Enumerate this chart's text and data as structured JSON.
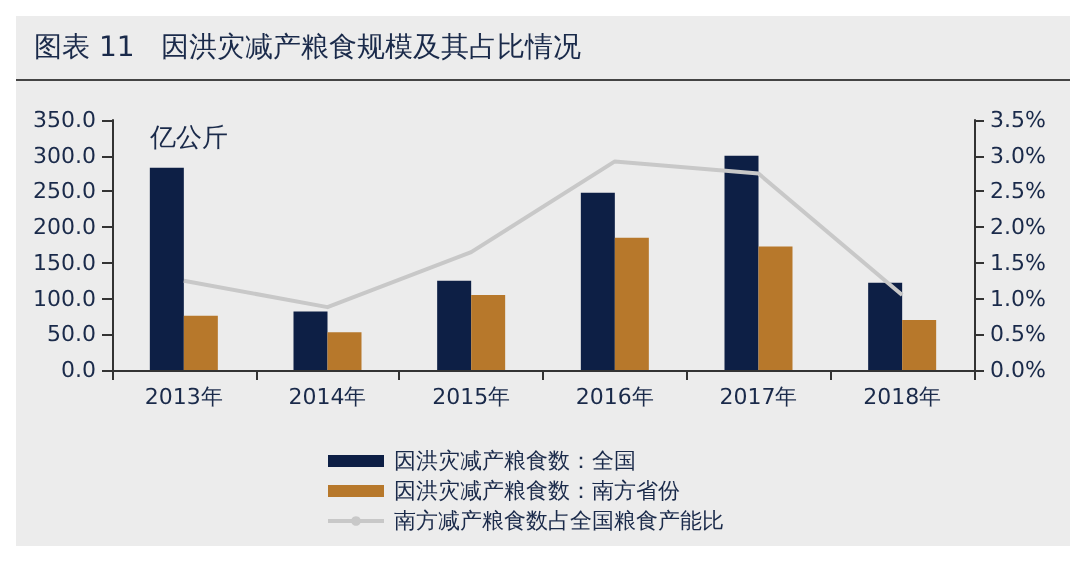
{
  "chart_data": {
    "type": "bar",
    "title": "图表 11   因洪灾减产粮食规模及其占比情况",
    "ylabel": "亿公斤",
    "categories": [
      "2013年",
      "2014年",
      "2015年",
      "2016年",
      "2017年",
      "2018年"
    ],
    "series": [
      {
        "name": "因洪灾减产粮食数：全国",
        "color": "#0d1f45",
        "values": [
          283,
          82,
          125,
          248,
          300,
          122
        ]
      },
      {
        "name": "因洪灾减产粮食数：南方省份",
        "color": "#b7782b",
        "values": [
          76,
          53,
          105,
          185,
          173,
          70
        ]
      },
      {
        "name": "南方减产粮食数占全国粮食产能比",
        "type": "line",
        "axis": "y2",
        "color": "#c8c8c8",
        "values": [
          1.25,
          0.88,
          1.65,
          2.92,
          2.75,
          1.05
        ]
      }
    ],
    "ylim": [
      0,
      350
    ],
    "yticks": [
      {
        "value": 0,
        "label": "0.0"
      },
      {
        "value": 50,
        "label": "50.0"
      },
      {
        "value": 100,
        "label": "100.0"
      },
      {
        "value": 150,
        "label": "150.0"
      },
      {
        "value": 200,
        "label": "200.0"
      },
      {
        "value": 250,
        "label": "250.0"
      },
      {
        "value": 300,
        "label": "300.0"
      },
      {
        "value": 350,
        "label": "350.0"
      }
    ],
    "y2lim": [
      0,
      3.5
    ],
    "y2ticks": [
      {
        "value": 0,
        "label": "0.0%"
      },
      {
        "value": 0.5,
        "label": "0.5%"
      },
      {
        "value": 1,
        "label": "1.0%"
      },
      {
        "value": 1.5,
        "label": "1.5%"
      },
      {
        "value": 2,
        "label": "2.0%"
      },
      {
        "value": 2.5,
        "label": "2.5%"
      },
      {
        "value": 3,
        "label": "3.0%"
      },
      {
        "value": 3.5,
        "label": "3.5%"
      }
    ],
    "grid": false,
    "legend": "bottom",
    "marker": "none"
  }
}
